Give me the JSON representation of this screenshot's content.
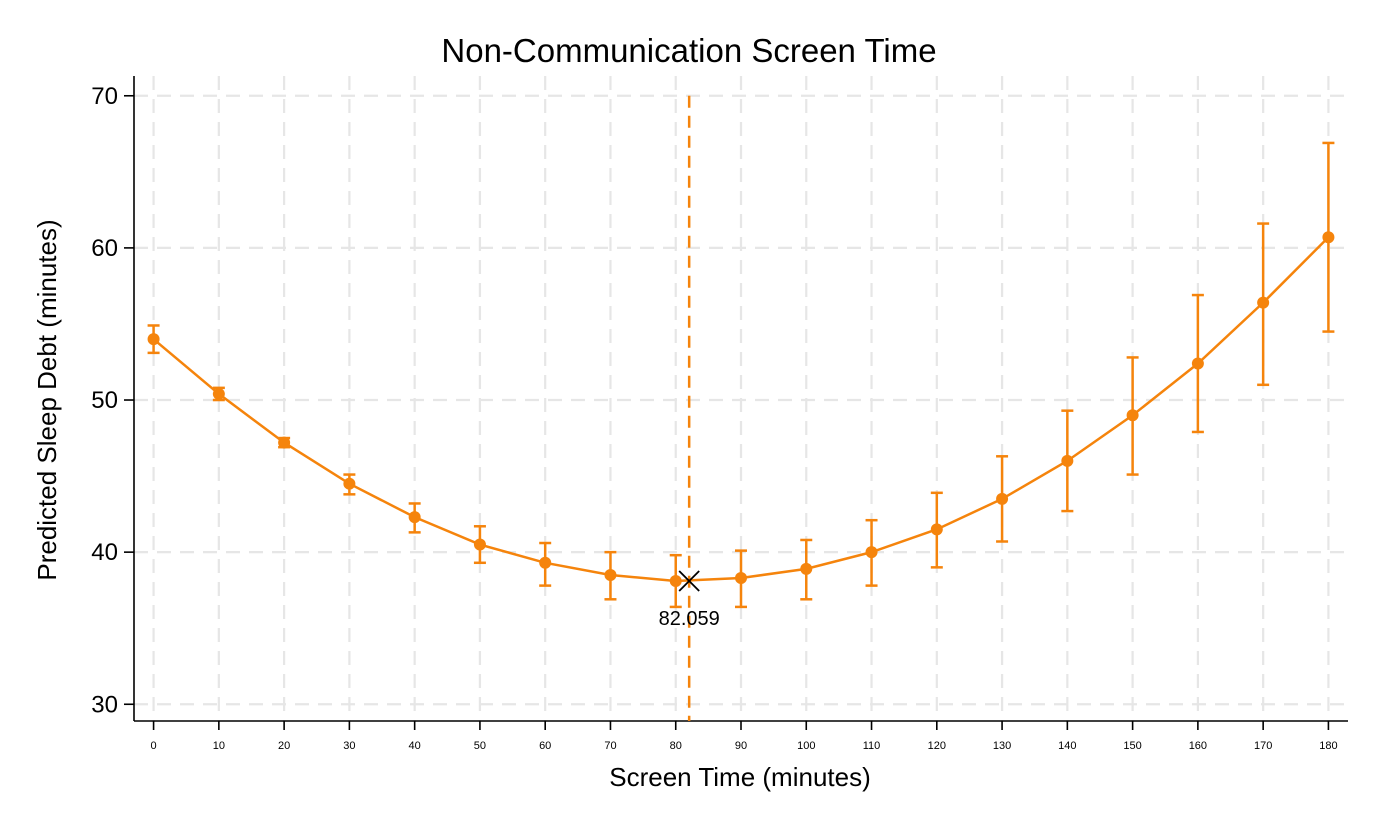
{
  "chart_data": {
    "type": "line",
    "title": "Non-Communication Screen Time",
    "xlabel": "Screen Time (minutes)",
    "ylabel": "Predicted Sleep Debt (minutes)",
    "xlim": [
      -3,
      183
    ],
    "ylim": [
      28.9,
      71.3
    ],
    "xticks": [
      0,
      10,
      20,
      30,
      40,
      50,
      60,
      70,
      80,
      90,
      100,
      110,
      120,
      130,
      140,
      150,
      160,
      170,
      180
    ],
    "yticks": [
      30,
      40,
      50,
      60,
      70
    ],
    "grid": true,
    "color": "#f5840c",
    "series": [
      {
        "x": [
          0,
          10,
          20,
          30,
          40,
          50,
          60,
          70,
          80,
          90,
          100,
          110,
          120,
          130,
          140,
          150,
          160,
          170,
          180
        ],
        "y": [
          54.0,
          50.4,
          47.2,
          44.5,
          42.3,
          40.5,
          39.3,
          38.5,
          38.1,
          38.3,
          38.9,
          40.0,
          41.5,
          43.5,
          46.0,
          49.0,
          52.4,
          56.4,
          60.7
        ],
        "lower": [
          53.1,
          50.0,
          46.9,
          43.8,
          41.3,
          39.3,
          37.8,
          36.9,
          36.4,
          36.4,
          36.9,
          37.8,
          39.0,
          40.7,
          42.7,
          45.1,
          47.9,
          51.0,
          54.5
        ],
        "upper": [
          54.9,
          50.8,
          47.5,
          45.1,
          43.2,
          41.7,
          40.6,
          40.0,
          39.8,
          40.1,
          40.8,
          42.1,
          43.9,
          46.3,
          49.3,
          52.8,
          56.9,
          61.6,
          66.9
        ]
      }
    ],
    "vertical_line": {
      "x": 82.059
    },
    "minimum_marker": {
      "x": 82.059,
      "y": 38.1,
      "label": "82.059"
    }
  }
}
